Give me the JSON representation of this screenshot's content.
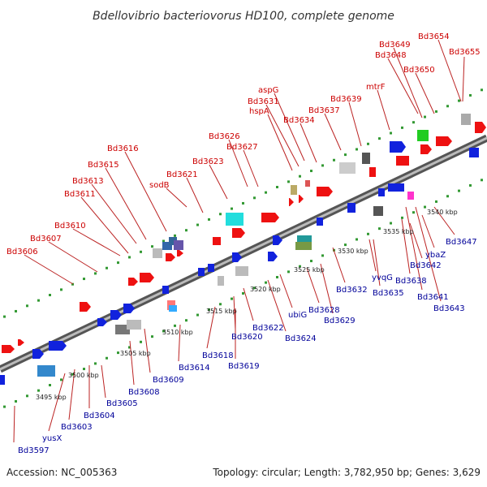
{
  "title": "Bdellovibrio bacteriovorus HD100, complete genome",
  "footer": {
    "accession": "Accession: NC_005363",
    "stats": "Topology: circular; Length: 3,782,950 bp; Genes: 3,629"
  },
  "colors": {
    "forward_label": "#cc0000",
    "reverse_label": "#000099",
    "backbone": "#888888",
    "gene_dots": "#339933"
  },
  "ticks": [
    "3495 kbp",
    "3500 kbp",
    "3505 kbp",
    "3510 kbp",
    "3515 kbp",
    "3520 kbp",
    "3525 kbp",
    "3530 kbp",
    "3535 kbp",
    "3540 kbp"
  ],
  "forward_labels": [
    "Bd3606",
    "Bd3607",
    "Bd3610",
    "Bd3611",
    "Bd3613",
    "Bd3615",
    "Bd3616",
    "sodB",
    "Bd3621",
    "Bd3623",
    "Bd3626",
    "Bd3627",
    "hspA",
    "Bd3631",
    "aspG",
    "Bd3634",
    "Bd3637",
    "Bd3639",
    "mtrF",
    "Bd3648",
    "Bd3649",
    "Bd3650",
    "Bd3654",
    "Bd3655"
  ],
  "reverse_labels": [
    "Bd3597",
    "yusX",
    "Bd3603",
    "Bd3604",
    "Bd3605",
    "Bd3608",
    "Bd3609",
    "Bd3614",
    "Bd3618",
    "Bd3619",
    "Bd3620",
    "Bd3622",
    "Bd3624",
    "ubiG",
    "Bd3628",
    "Bd3629",
    "Bd3632",
    "yvqG",
    "Bd3635",
    "Bd3638",
    "Bd3641",
    "Bd3642",
    "Bd3643",
    "ybaZ",
    "Bd3647"
  ]
}
